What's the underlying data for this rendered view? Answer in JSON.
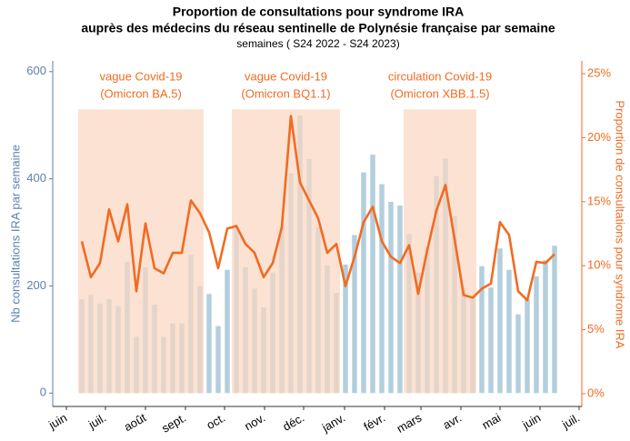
{
  "chart_data": {
    "type": "bar_line",
    "title": [
      "Proportion de consultations pour syndrome IRA",
      "auprès des médecins du réseau sentinelle de Polynésie française par semaine"
    ],
    "subtitle": "semaines ( S24 2022 - S24 2023)",
    "y_label": "Nb consultations IRA par semaine",
    "y2_label": "Proportion de consultations pour syndrome IRA",
    "x": [
      0,
      1,
      2,
      3,
      4,
      5,
      6,
      7,
      8,
      9,
      10,
      11,
      12,
      13,
      14,
      15,
      16,
      17,
      18,
      19,
      20,
      21,
      22,
      23,
      24,
      25,
      26,
      27,
      28,
      29,
      30,
      31,
      32,
      33,
      34,
      35,
      36,
      37,
      38,
      39,
      40,
      41,
      42,
      43,
      44,
      45,
      46,
      47,
      48,
      49,
      50,
      51,
      52
    ],
    "xlim": [
      -3.2,
      55
    ],
    "xticks": [
      {
        "value": -1.7,
        "label": "juin"
      },
      {
        "value": 2.6,
        "label": "juil."
      },
      {
        "value": 7.0,
        "label": "août"
      },
      {
        "value": 11.4,
        "label": "sept."
      },
      {
        "value": 15.7,
        "label": "oct."
      },
      {
        "value": 20.1,
        "label": "nov."
      },
      {
        "value": 24.4,
        "label": "déc."
      },
      {
        "value": 28.9,
        "label": "janv."
      },
      {
        "value": 33.3,
        "label": "févr."
      },
      {
        "value": 37.3,
        "label": "mars"
      },
      {
        "value": 41.7,
        "label": "avr."
      },
      {
        "value": 46.0,
        "label": "mai"
      },
      {
        "value": 50.4,
        "label": "juin"
      },
      {
        "value": 54.7,
        "label": "juil."
      }
    ],
    "ylim": [
      -25,
      620
    ],
    "yticks": [
      0,
      200,
      400,
      600
    ],
    "y2lim": [
      -1,
      26
    ],
    "y2ticks": [
      {
        "value": 0,
        "label": "0%"
      },
      {
        "value": 5,
        "label": "5%"
      },
      {
        "value": 10,
        "label": "10%"
      },
      {
        "value": 15,
        "label": "15%"
      },
      {
        "value": 20,
        "label": "20%"
      },
      {
        "value": 25,
        "label": "25%"
      }
    ],
    "series": [
      {
        "name": "Nb consultations IRA",
        "kind": "bar",
        "color": "#b3cfdd",
        "values": [
          175,
          183,
          167,
          175,
          162,
          245,
          105,
          235,
          165,
          105,
          130,
          130,
          258,
          200,
          185,
          125,
          230,
          310,
          235,
          195,
          160,
          225,
          310,
          410,
          518,
          437,
          310,
          238,
          187,
          240,
          295,
          412,
          445,
          390,
          357,
          350,
          297,
          225,
          272,
          405,
          438,
          330,
          197,
          180,
          237,
          197,
          270,
          230,
          147,
          175,
          218,
          248,
          275
        ]
      },
      {
        "name": "Proportion IRA",
        "kind": "line",
        "axis": "y2",
        "color": "#f26b21",
        "values": [
          11.9,
          9.1,
          10.2,
          14.4,
          11.9,
          14.8,
          8.0,
          13.3,
          9.8,
          9.4,
          11.0,
          11.0,
          15.1,
          14.1,
          12.6,
          9.8,
          12.9,
          13.1,
          11.7,
          11.0,
          9.1,
          10.2,
          13.0,
          21.7,
          16.5,
          15.1,
          13.7,
          11.0,
          11.7,
          8.4,
          10.7,
          13.4,
          14.6,
          11.9,
          10.7,
          10.2,
          11.6,
          7.8,
          11.2,
          14.3,
          16.3,
          12.1,
          7.7,
          7.5,
          8.2,
          8.6,
          13.4,
          12.4,
          8.0,
          7.3,
          10.3,
          10.2,
          10.9
        ]
      }
    ],
    "annotations": [
      {
        "text": [
          "vague Covid-19",
          "(Omicron BA.5)"
        ],
        "x_range": [
          -0.4,
          13.4
        ],
        "color": "#fbd5c0"
      },
      {
        "text": [
          "vague Covid-19",
          "(Omicron BQ1.1)"
        ],
        "x_range": [
          16.5,
          28.4
        ],
        "color": "#fbd5c0"
      },
      {
        "text": [
          "circulation Covid-19",
          "(Omicron XBB.1.5)"
        ],
        "x_range": [
          35.4,
          43.4
        ],
        "color": "#fbd5c0"
      }
    ],
    "y_color": "#5b82ad",
    "y2_color": "#f26b21"
  }
}
